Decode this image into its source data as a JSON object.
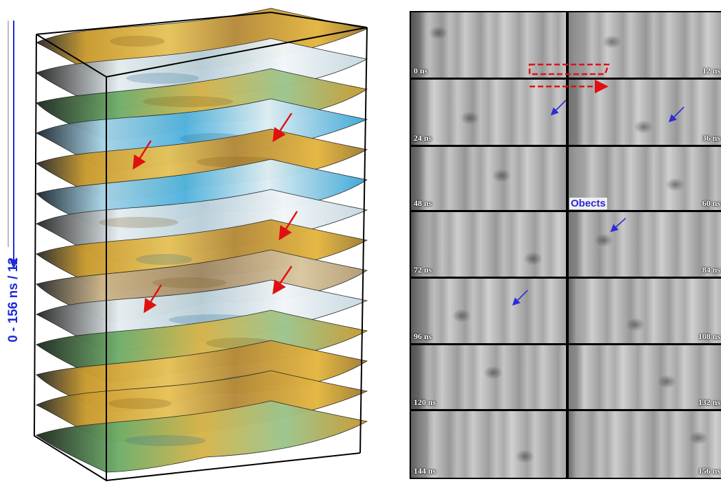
{
  "axis_label": "0 - 156 ns / 12",
  "objects_label": "Obects",
  "time_slices": [
    "0 ns",
    "12 ns",
    "24 ns",
    "36 ns",
    "48 ns",
    "60 ns",
    "72 ns",
    "84 ns",
    "96 ns",
    "108 ns",
    "120 ns",
    "132 ns",
    "144 ns",
    "156 ns"
  ],
  "colors": {
    "accent_blue": "#1f2bd6",
    "annotation_red": "#e01010",
    "surface_gold": "#d6a12a",
    "surface_blue": "#5ab8e0",
    "surface_green": "#6fae6a",
    "surface_pale": "#dfe9ee"
  }
}
